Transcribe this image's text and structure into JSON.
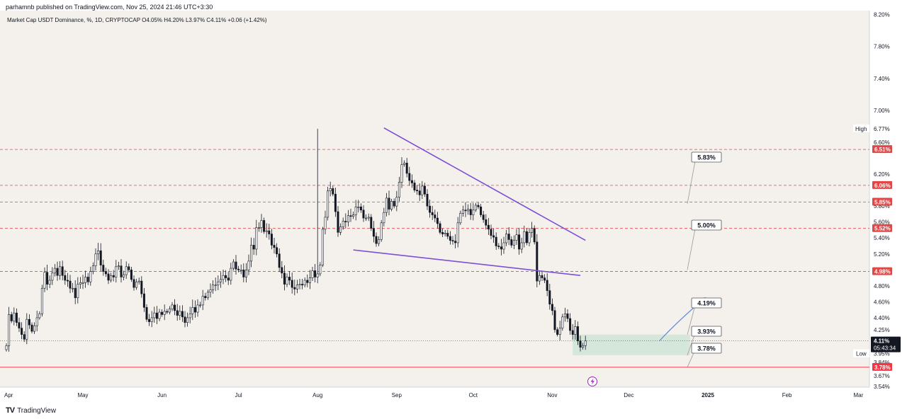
{
  "header": {
    "published": "parhamnb published on TradingView.com, Nov 25, 2024 21:46 UTC+3:30",
    "legend": "Market Cap USDT Dominance, %, 1D, CRYPTOCAP  O4.05%  H4.20%  L3.97%  C4.11%  +0.06 (+1.42%)"
  },
  "footer": {
    "brand": "TradingView",
    "logo_text": "TV"
  },
  "colors": {
    "background": "#f4f1ec",
    "up": "#131722",
    "down": "#131722",
    "wedge": "#7b4fd6",
    "level": "#e04848",
    "support": "#f23645",
    "zone": "#cfe5d8",
    "arrow": "#5b8fdc",
    "annot_border": "#555555",
    "price_badge": "#131722",
    "level_badge": "#e04848"
  },
  "chart_data": {
    "type": "candlestick",
    "title": "Market Cap USDT Dominance, %, 1D, CRYPTOCAP",
    "ylim": [
      3.53,
      8.25
    ],
    "y_ticks": [
      "8.20%",
      "7.80%",
      "7.40%",
      "7.00%",
      "6.60%",
      "6.20%",
      "5.80%",
      "5.60%",
      "5.40%",
      "5.20%",
      "4.80%",
      "4.60%",
      "4.40%",
      "4.25%",
      "3.95%",
      "3.84%",
      "3.67%",
      "3.54%"
    ],
    "x_ticks": [
      "Apr",
      "May",
      "Jun",
      "Jul",
      "Aug",
      "Sep",
      "Oct",
      "Nov",
      "Dec",
      "2025",
      "Feb",
      "Mar"
    ],
    "high_label": "High",
    "high_value": "6.77%",
    "low_label": "Low",
    "low_value": "3.95%",
    "last_price": "4.11%",
    "countdown": "05:43:34",
    "levels": [
      "6.51%",
      "6.06%",
      "5.85%",
      "5.52%",
      "4.98%"
    ],
    "support_level": "3.78%",
    "annotations": [
      "5.83%",
      "5.00%",
      "4.19%",
      "3.93%",
      "3.78%"
    ],
    "zone": [
      3.93,
      4.19
    ],
    "wedge_upper": [
      [
        "2024-08-27",
        6.78
      ],
      [
        "2024-11-14",
        5.37
      ]
    ],
    "wedge_lower": [
      [
        "2024-08-15",
        5.25
      ],
      [
        "2024-11-12",
        4.93
      ]
    ],
    "closes": [
      4.05,
      4.44,
      4.36,
      4.46,
      4.34,
      4.27,
      4.19,
      4.13,
      4.38,
      4.31,
      4.23,
      4.3,
      4.4,
      4.45,
      4.77,
      4.97,
      4.82,
      4.87,
      4.96,
      5.02,
      4.93,
      5.04,
      4.93,
      4.87,
      4.86,
      4.77,
      4.77,
      4.65,
      4.82,
      4.84,
      4.84,
      4.91,
      4.85,
      4.98,
      5.05,
      5.2,
      5.24,
      5.06,
      4.98,
      4.95,
      4.87,
      4.93,
      4.91,
      5.04,
      5.05,
      4.91,
      4.94,
      5.04,
      5.0,
      4.88,
      4.78,
      4.85,
      4.86,
      4.7,
      4.53,
      4.38,
      4.35,
      4.4,
      4.46,
      4.39,
      4.47,
      4.44,
      4.48,
      4.47,
      4.51,
      4.56,
      4.49,
      4.43,
      4.48,
      4.41,
      4.34,
      4.4,
      4.45,
      4.53,
      4.47,
      4.56,
      4.56,
      4.67,
      4.65,
      4.72,
      4.75,
      4.81,
      4.81,
      4.85,
      4.88,
      4.93,
      4.9,
      4.87,
      5.02,
      5.1,
      5.01,
      5.0,
      5.0,
      4.91,
      5.0,
      5.11,
      5.31,
      5.26,
      5.53,
      5.53,
      5.62,
      5.48,
      5.49,
      5.45,
      5.31,
      5.28,
      5.2,
      5.03,
      4.96,
      4.82,
      4.91,
      4.87,
      4.78,
      4.76,
      4.81,
      4.82,
      4.81,
      4.87,
      4.84,
      4.9,
      4.99,
      4.91,
      4.95,
      5.06,
      5.51,
      5.66,
      5.99,
      6.02,
      5.95,
      5.73,
      5.47,
      5.54,
      5.61,
      5.6,
      5.68,
      5.67,
      5.69,
      5.79,
      5.79,
      5.75,
      5.65,
      5.65,
      5.66,
      5.52,
      5.42,
      5.33,
      5.38,
      5.59,
      5.72,
      5.9,
      5.76,
      5.86,
      5.8,
      5.91,
      6.1,
      6.32,
      6.34,
      6.21,
      6.12,
      6.09,
      6.0,
      5.99,
      5.94,
      6.05,
      5.95,
      5.8,
      5.72,
      5.69,
      5.65,
      5.58,
      5.47,
      5.45,
      5.46,
      5.42,
      5.37,
      5.36,
      5.34,
      5.59,
      5.71,
      5.75,
      5.74,
      5.76,
      5.69,
      5.75,
      5.81,
      5.79,
      5.69,
      5.63,
      5.56,
      5.51,
      5.43,
      5.41,
      5.3,
      5.29,
      5.26,
      5.34,
      5.45,
      5.38,
      5.31,
      5.37,
      5.44,
      5.26,
      5.34,
      5.48,
      5.34,
      5.47,
      5.52,
      5.35,
      4.86,
      4.93,
      4.9,
      4.87,
      4.74,
      4.57,
      4.49,
      4.25,
      4.19,
      4.27,
      4.41,
      4.45,
      4.39,
      4.24,
      4.19,
      4.29,
      4.11,
      4.03,
      4.05,
      4.11
    ]
  }
}
